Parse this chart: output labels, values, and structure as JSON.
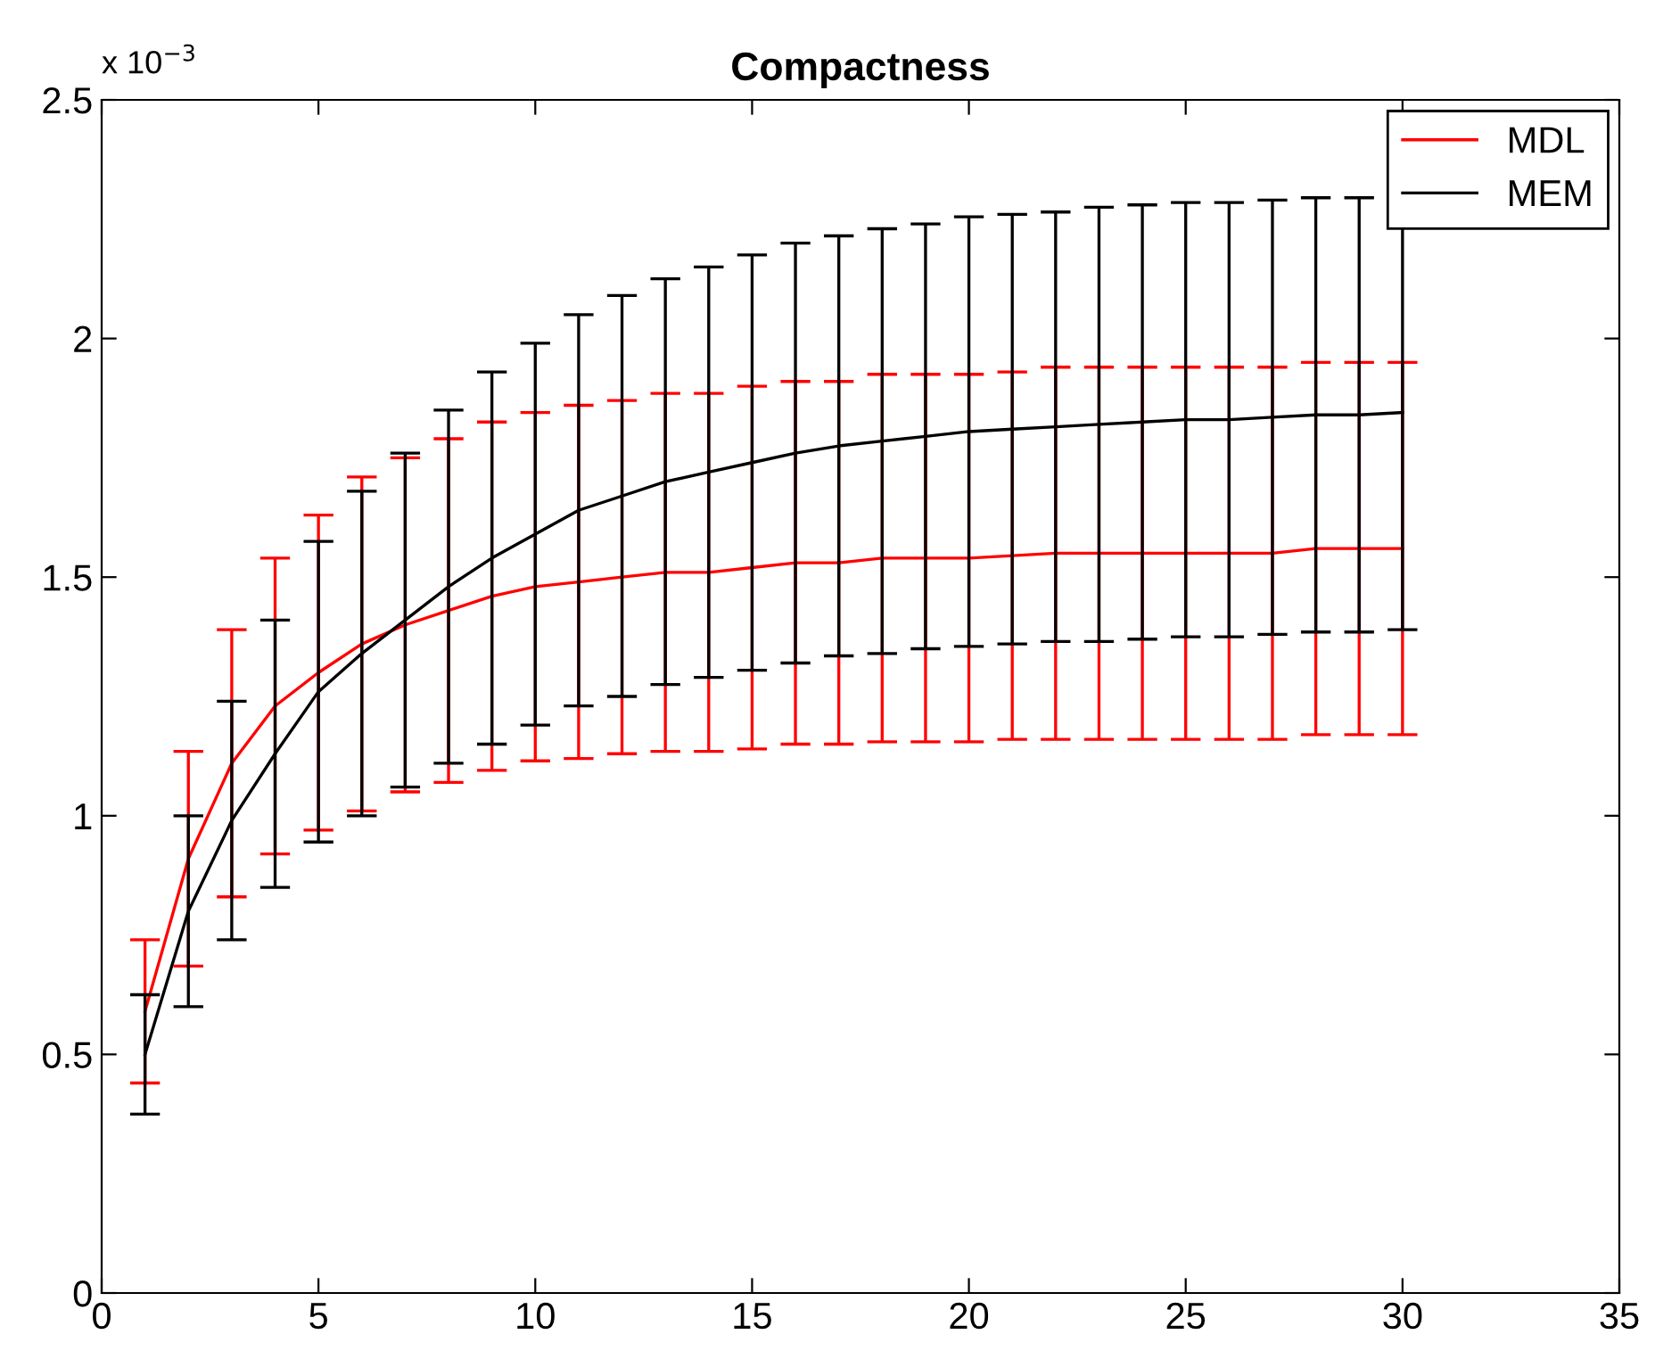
{
  "chart_data": {
    "type": "line",
    "title": "Compactness",
    "annotations": [
      "x 10$^{−3}$"
    ],
    "x": [
      1,
      2,
      3,
      4,
      5,
      6,
      7,
      8,
      9,
      10,
      11,
      12,
      13,
      14,
      15,
      16,
      17,
      18,
      19,
      20,
      21,
      22,
      23,
      24,
      25,
      26,
      27,
      28,
      29,
      30
    ],
    "series": [
      {
        "name": "MDL",
        "color": "#ff0000",
        "values": [
          0.59,
          0.91,
          1.11,
          1.23,
          1.3,
          1.36,
          1.4,
          1.43,
          1.46,
          1.48,
          1.49,
          1.5,
          1.51,
          1.51,
          1.52,
          1.53,
          1.53,
          1.54,
          1.54,
          1.54,
          1.545,
          1.55,
          1.55,
          1.55,
          1.55,
          1.55,
          1.55,
          1.56,
          1.56,
          1.56
        ],
        "errors": [
          0.15,
          0.225,
          0.28,
          0.31,
          0.33,
          0.35,
          0.35,
          0.36,
          0.365,
          0.365,
          0.37,
          0.37,
          0.375,
          0.375,
          0.38,
          0.38,
          0.38,
          0.385,
          0.385,
          0.385,
          0.385,
          0.39,
          0.39,
          0.39,
          0.39,
          0.39,
          0.39,
          0.39,
          0.39,
          0.39
        ]
      },
      {
        "name": "MEM",
        "color": "#000000",
        "values": [
          0.5,
          0.8,
          0.99,
          1.13,
          1.26,
          1.34,
          1.41,
          1.48,
          1.54,
          1.59,
          1.64,
          1.67,
          1.7,
          1.72,
          1.74,
          1.76,
          1.775,
          1.785,
          1.795,
          1.805,
          1.81,
          1.815,
          1.82,
          1.825,
          1.83,
          1.83,
          1.835,
          1.84,
          1.84,
          1.845
        ],
        "errors": [
          0.125,
          0.2,
          0.25,
          0.28,
          0.315,
          0.34,
          0.35,
          0.37,
          0.39,
          0.4,
          0.41,
          0.42,
          0.425,
          0.43,
          0.435,
          0.44,
          0.44,
          0.445,
          0.445,
          0.45,
          0.45,
          0.45,
          0.455,
          0.455,
          0.455,
          0.455,
          0.455,
          0.455,
          0.455,
          0.455
        ]
      }
    ],
    "xlim": [
      0,
      35
    ],
    "xticks": [
      0,
      5,
      10,
      15,
      20,
      25,
      30,
      35
    ],
    "ylim": [
      0,
      2.5
    ],
    "yticks": [
      0,
      0.5,
      1,
      1.5,
      2,
      2.5
    ],
    "grid": false,
    "legend": "top right"
  }
}
